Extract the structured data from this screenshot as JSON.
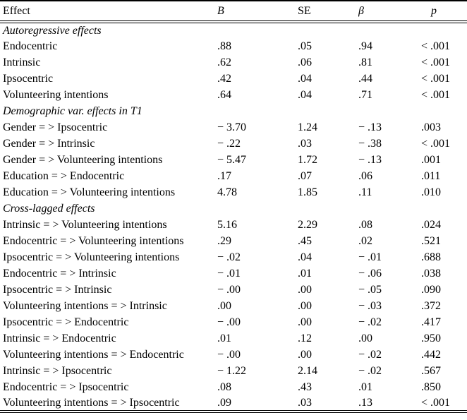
{
  "page": {
    "background": "#ffffff",
    "text_color": "#000000",
    "rule_color": "#000000"
  },
  "table": {
    "columns": [
      {
        "key": "effect",
        "label": "Effect",
        "italic": false
      },
      {
        "key": "B",
        "label": "B",
        "italic": true
      },
      {
        "key": "SE",
        "label": "SE",
        "italic": false
      },
      {
        "key": "beta",
        "label": "β",
        "italic": true
      },
      {
        "key": "p",
        "label": "p",
        "italic": true
      }
    ],
    "sections": [
      {
        "title": "Autoregressive effects",
        "rows": [
          {
            "effect": "Endocentric",
            "B": ".88",
            "SE": ".05",
            "beta": ".94",
            "p": "< .001"
          },
          {
            "effect": "Intrinsic",
            "B": ".62",
            "SE": ".06",
            "beta": ".81",
            "p": "< .001"
          },
          {
            "effect": "Ipsocentric",
            "B": ".42",
            "SE": ".04",
            "beta": ".44",
            "p": "< .001"
          },
          {
            "effect": "Volunteering intentions",
            "B": ".64",
            "SE": ".04",
            "beta": ".71",
            "p": "< .001"
          }
        ]
      },
      {
        "title": "Demographic var. effects in T1",
        "rows": [
          {
            "effect": "Gender = > Ipsocentric",
            "B": "− 3.70",
            "SE": "1.24",
            "beta": "− .13",
            "p": ".003"
          },
          {
            "effect": "Gender = > Intrinsic",
            "B": "− .22",
            "SE": ".03",
            "beta": "− .38",
            "p": "< .001"
          },
          {
            "effect": "Gender = > Volunteering intentions",
            "B": "− 5.47",
            "SE": "1.72",
            "beta": "− .13",
            "p": ".001"
          },
          {
            "effect": "Education = > Endocentric",
            "B": ".17",
            "SE": ".07",
            "beta": ".06",
            "p": ".011"
          },
          {
            "effect": "Education = > Volunteering intentions",
            "B": "4.78",
            "SE": "1.85",
            "beta": ".11",
            "p": ".010"
          }
        ]
      },
      {
        "title": "Cross-lagged effects",
        "rows": [
          {
            "effect": "Intrinsic = > Volunteering intentions",
            "B": "5.16",
            "SE": "2.29",
            "beta": ".08",
            "p": ".024"
          },
          {
            "effect": "Endocentric = > Volunteering intentions",
            "B": ".29",
            "SE": ".45",
            "beta": ".02",
            "p": ".521"
          },
          {
            "effect": "Ipsocentric = > Volunteering intentions",
            "B": "− .02",
            "SE": ".04",
            "beta": "− .01",
            "p": ".688"
          },
          {
            "effect": "Endocentric = > Intrinsic",
            "B": "− .01",
            "SE": ".01",
            "beta": "− .06",
            "p": ".038"
          },
          {
            "effect": "Ipsocentric = > Intrinsic",
            "B": "− .00",
            "SE": ".00",
            "beta": "− .05",
            "p": ".090"
          },
          {
            "effect": "Volunteering intentions = > Intrinsic",
            "B": ".00",
            "SE": ".00",
            "beta": "− .03",
            "p": ".372"
          },
          {
            "effect": "Ipsocentric = > Endocentric",
            "B": "− .00",
            "SE": ".00",
            "beta": "− .02",
            "p": ".417"
          },
          {
            "effect": "Intrinsic = > Endocentric",
            "B": ".01",
            "SE": ".12",
            "beta": ".00",
            "p": ".950"
          },
          {
            "effect": "Volunteering intentions = > Endocentric",
            "B": "− .00",
            "SE": ".00",
            "beta": "− .02",
            "p": ".442"
          },
          {
            "effect": "Intrinsic = > Ipsocentric",
            "B": "− 1.22",
            "SE": "2.14",
            "beta": "− .02",
            "p": ".567"
          },
          {
            "effect": "Endocentric = > Ipsocentric",
            "B": ".08",
            "SE": ".43",
            "beta": ".01",
            "p": ".850"
          },
          {
            "effect": "Volunteering intentions = > Ipsocentric",
            "B": ".09",
            "SE": ".03",
            "beta": ".13",
            "p": "< .001"
          }
        ]
      }
    ]
  }
}
